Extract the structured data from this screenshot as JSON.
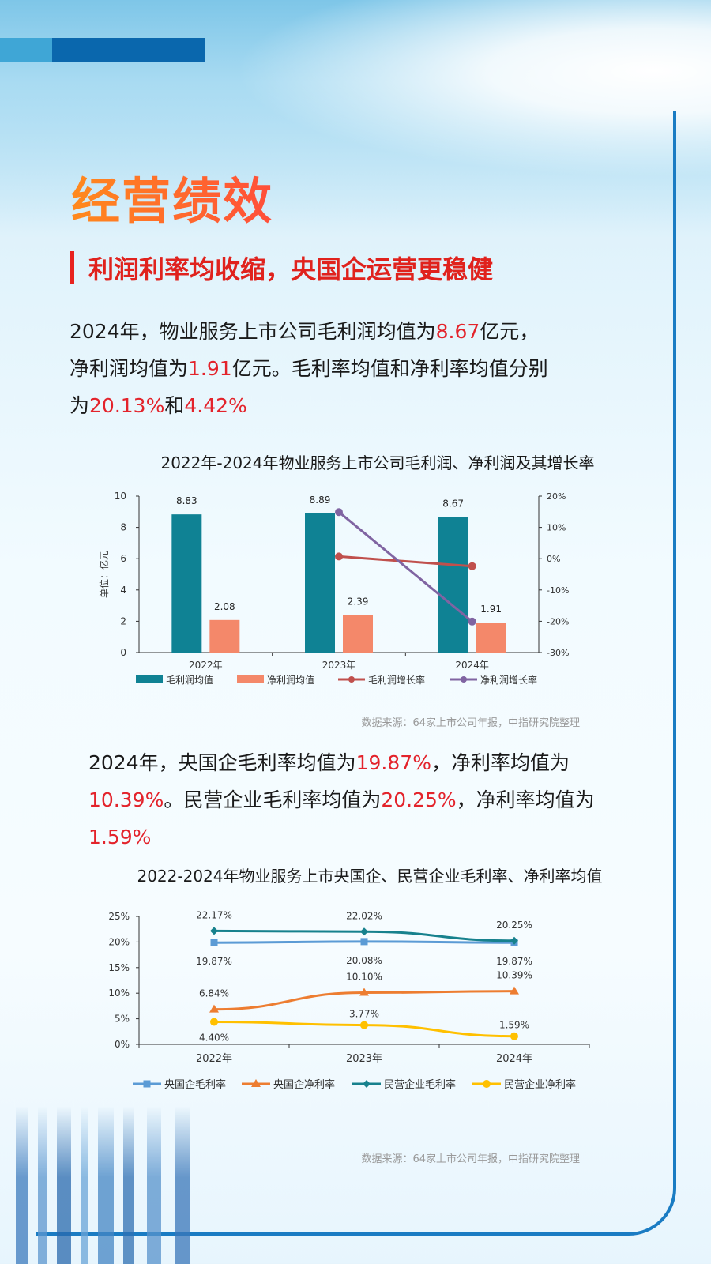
{
  "header": {
    "title": "经营绩效",
    "subtitle": "利润利率均收缩，央国企运营更稳健"
  },
  "para1": {
    "line1_a": "2024年，物业服务上市公司毛利润均值为",
    "line1_hl": "8.67",
    "line1_b": "亿元，",
    "line2_a": "净利润均值为",
    "line2_hl": "1.91",
    "line2_b": "亿元。毛利率均值和净利率均值分别",
    "line3_a": "为",
    "line3_hl1": "20.13%",
    "line3_b": "和",
    "line3_hl2": "4.42%"
  },
  "para2": {
    "line1_a": "2024年，央国企毛利率均值为",
    "line1_hl": "19.87%",
    "line1_b": "，净利率均值为",
    "line2_hl1": "10.39%",
    "line2_a": "。民营企业毛利率均值为",
    "line2_hl2": "20.25%",
    "line2_b": "，净利率均值为",
    "line3_hl": "1.59%"
  },
  "source_text": "数据来源：64家上市公司年报，中指研究院整理",
  "chart_data": [
    {
      "type": "bar",
      "title": "2022年-2024年物业服务上市公司毛利润、净利润及其增长率",
      "categories": [
        "2022年",
        "2023年",
        "2024年"
      ],
      "ylabel": "单位：亿元",
      "ylim": [
        0,
        10
      ],
      "yticks": [
        "0",
        "2",
        "4",
        "6",
        "8",
        "10"
      ],
      "y2lim": [
        -30,
        20
      ],
      "y2ticks": [
        "-30%",
        "-20%",
        "-10%",
        "0%",
        "10%",
        "20%"
      ],
      "series": [
        {
          "name": "毛利润均值",
          "kind": "bar",
          "axis": "left",
          "color": "#0f8294",
          "values": [
            8.83,
            8.89,
            8.67
          ],
          "labels": [
            "8.83",
            "8.89",
            "8.67"
          ]
        },
        {
          "name": "净利润均值",
          "kind": "bar",
          "axis": "left",
          "color": "#f4886a",
          "values": [
            2.08,
            2.39,
            1.91
          ],
          "labels": [
            "2.08",
            "2.39",
            "1.91"
          ]
        },
        {
          "name": "毛利润增长率",
          "kind": "line",
          "axis": "right",
          "color": "#c0504d",
          "values": [
            null,
            0.7,
            -2.4
          ]
        },
        {
          "name": "净利润增长率",
          "kind": "line",
          "axis": "right",
          "color": "#8064a2",
          "values": [
            null,
            14.9,
            -20.1
          ]
        }
      ],
      "legend": "bottom"
    },
    {
      "type": "line",
      "title": "2022-2024年物业服务上市央国企、民营企业毛利率、净利率均值",
      "categories": [
        "2022年",
        "2023年",
        "2024年"
      ],
      "ylim": [
        0,
        25
      ],
      "yticks": [
        "0%",
        "5%",
        "10%",
        "15%",
        "20%",
        "25%"
      ],
      "series": [
        {
          "name": "央国企毛利率",
          "color": "#5b9bd5",
          "marker": "square",
          "values": [
            19.87,
            20.08,
            19.87
          ],
          "labels": [
            "19.87%",
            "20.08%",
            "19.87%"
          ],
          "label_pos": "below"
        },
        {
          "name": "央国企净利率",
          "color": "#ed7d31",
          "marker": "triangle",
          "values": [
            6.84,
            10.1,
            10.39
          ],
          "labels": [
            "6.84%",
            "10.10%",
            "10.39%"
          ],
          "label_pos": "above"
        },
        {
          "name": "民营企业毛利率",
          "color": "#17818d",
          "marker": "diamond",
          "values": [
            22.17,
            22.02,
            20.25
          ],
          "labels": [
            "22.17%",
            "22.02%",
            "20.25%"
          ],
          "label_pos": "above"
        },
        {
          "name": "民营企业净利率",
          "color": "#ffc000",
          "marker": "circle",
          "values": [
            4.4,
            3.77,
            1.59
          ],
          "labels": [
            "4.40%",
            "3.77%",
            "1.59%"
          ],
          "label_pos": "mixed"
        }
      ],
      "legend": "bottom"
    }
  ]
}
